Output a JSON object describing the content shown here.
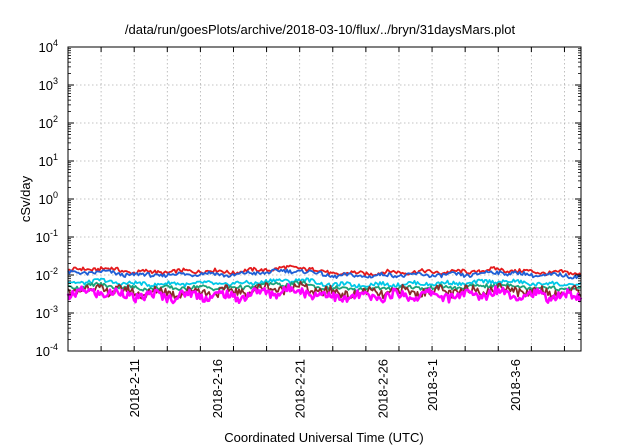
{
  "chart_data": {
    "type": "line",
    "title": "/data/run/goesPlots/archive/2018-03-10/flux/../bryn/31daysMars.plot",
    "xlabel": "Coordinated Universal Time (UTC)",
    "ylabel": "cSv/day",
    "yscale": "log",
    "ylim": [
      0.0001,
      10000
    ],
    "yticks": [
      {
        "base": "10",
        "exp": "-4"
      },
      {
        "base": "10",
        "exp": "-3"
      },
      {
        "base": "10",
        "exp": "-2"
      },
      {
        "base": "10",
        "exp": "-1"
      },
      {
        "base": "10",
        "exp": "0"
      },
      {
        "base": "10",
        "exp": "1"
      },
      {
        "base": "10",
        "exp": "2"
      },
      {
        "base": "10",
        "exp": "3"
      },
      {
        "base": "10",
        "exp": "4"
      }
    ],
    "xlim": [
      "2018-02-07",
      "2018-03-10"
    ],
    "xticks": [
      "2018-2-11",
      "2018-2-16",
      "2018-2-21",
      "2018-2-26",
      "2018-3-1",
      "2018-3-6"
    ],
    "grid": true,
    "series": [
      {
        "color": "#e41a1c",
        "x": [
          "2018-02-07",
          "2018-02-09",
          "2018-02-11",
          "2018-02-13",
          "2018-02-15",
          "2018-02-17",
          "2018-02-19",
          "2018-02-21",
          "2018-02-23",
          "2018-02-25",
          "2018-02-27",
          "2018-03-01",
          "2018-03-03",
          "2018-03-05",
          "2018-03-07",
          "2018-03-10"
        ],
        "values": [
          0.013,
          0.015,
          0.012,
          0.012,
          0.013,
          0.012,
          0.014,
          0.016,
          0.011,
          0.011,
          0.012,
          0.012,
          0.012,
          0.014,
          0.012,
          0.011
        ]
      },
      {
        "color": "#1f5fd6",
        "x": [
          "2018-02-07",
          "2018-02-09",
          "2018-02-11",
          "2018-02-13",
          "2018-02-15",
          "2018-02-17",
          "2018-02-19",
          "2018-02-21",
          "2018-02-23",
          "2018-02-25",
          "2018-02-27",
          "2018-03-01",
          "2018-03-03",
          "2018-03-05",
          "2018-03-07",
          "2018-03-10"
        ],
        "values": [
          0.011,
          0.012,
          0.01,
          0.01,
          0.011,
          0.01,
          0.012,
          0.013,
          0.0095,
          0.0095,
          0.01,
          0.01,
          0.01,
          0.012,
          0.01,
          0.0095
        ]
      },
      {
        "color": "#00c8e8",
        "x": [
          "2018-02-07",
          "2018-02-09",
          "2018-02-11",
          "2018-02-13",
          "2018-02-15",
          "2018-02-17",
          "2018-02-19",
          "2018-02-21",
          "2018-02-23",
          "2018-02-25",
          "2018-02-27",
          "2018-03-01",
          "2018-03-03",
          "2018-03-05",
          "2018-03-07",
          "2018-03-10"
        ],
        "values": [
          0.0062,
          0.007,
          0.0058,
          0.0058,
          0.006,
          0.0058,
          0.0068,
          0.0075,
          0.0055,
          0.0055,
          0.0058,
          0.006,
          0.006,
          0.007,
          0.006,
          0.0055
        ]
      },
      {
        "color": "#1aa37a",
        "x": [
          "2018-02-07",
          "2018-02-09",
          "2018-02-11",
          "2018-02-13",
          "2018-02-15",
          "2018-02-17",
          "2018-02-19",
          "2018-02-21",
          "2018-02-23",
          "2018-02-25",
          "2018-02-27",
          "2018-03-01",
          "2018-03-03",
          "2018-03-05",
          "2018-03-07",
          "2018-03-10"
        ],
        "values": [
          0.0048,
          0.0055,
          0.0045,
          0.0045,
          0.0047,
          0.0045,
          0.0055,
          0.006,
          0.0043,
          0.0043,
          0.0046,
          0.0047,
          0.0047,
          0.0056,
          0.0047,
          0.0043
        ]
      },
      {
        "color": "#8b2a2a",
        "x": [
          "2018-02-07",
          "2018-02-09",
          "2018-02-11",
          "2018-02-13",
          "2018-02-15",
          "2018-02-17",
          "2018-02-19",
          "2018-02-21",
          "2018-02-23",
          "2018-02-25",
          "2018-02-27",
          "2018-03-01",
          "2018-03-03",
          "2018-03-05",
          "2018-03-07",
          "2018-03-10"
        ],
        "values": [
          0.0038,
          0.0044,
          0.0035,
          0.0035,
          0.0037,
          0.0035,
          0.0044,
          0.0048,
          0.0033,
          0.0033,
          0.0036,
          0.0037,
          0.0037,
          0.0045,
          0.0037,
          0.0034
        ]
      },
      {
        "color": "#ff00ff",
        "x": [
          "2018-02-07",
          "2018-02-09",
          "2018-02-11",
          "2018-02-13",
          "2018-02-15",
          "2018-02-17",
          "2018-02-19",
          "2018-02-21",
          "2018-02-23",
          "2018-02-25",
          "2018-02-27",
          "2018-03-01",
          "2018-03-03",
          "2018-03-05",
          "2018-03-07",
          "2018-03-10"
        ],
        "values": [
          0.0032,
          0.0036,
          0.0028,
          0.0028,
          0.003,
          0.0027,
          0.0035,
          0.004,
          0.0026,
          0.0026,
          0.0029,
          0.003,
          0.0028,
          0.0036,
          0.0029,
          0.0027
        ]
      }
    ]
  }
}
